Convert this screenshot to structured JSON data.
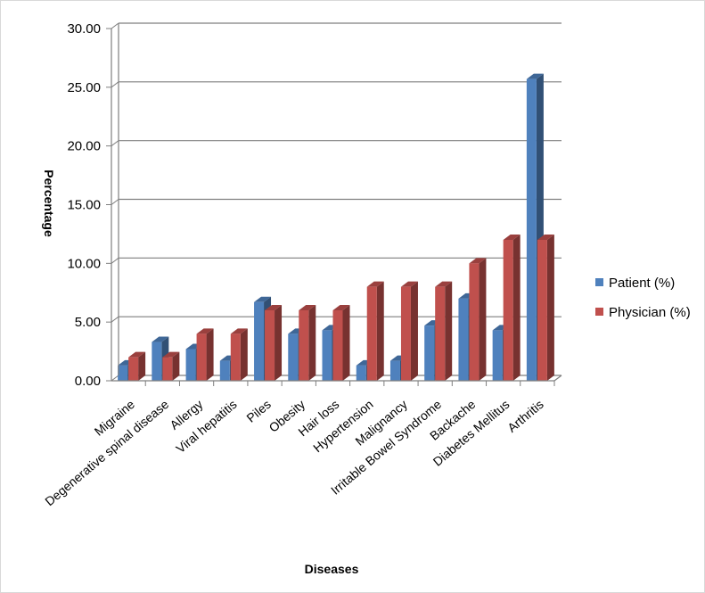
{
  "chart_data": {
    "type": "bar",
    "title": "",
    "xlabel": "Diseases",
    "ylabel": "Percentage",
    "ylim": [
      0,
      30
    ],
    "yticks": [
      "0.00",
      "5.00",
      "10.00",
      "15.00",
      "20.00",
      "25.00",
      "30.00"
    ],
    "grid": true,
    "legend_position": "right",
    "categories": [
      "Migraine",
      "Degenerative spinal disease",
      "Allergy",
      "Viral hepatitis",
      "Piles",
      "Obesity",
      "Hair loss",
      "Hypertension",
      "Malignancy",
      "Irritable Bowel Syndrome",
      "Backache",
      "Diabetes Mellitus",
      "Arthritis"
    ],
    "series": [
      {
        "name": "Patient  (%)",
        "color": "#4f81bd",
        "values": [
          1.3,
          3.3,
          2.7,
          1.7,
          6.7,
          4.0,
          4.3,
          1.3,
          1.7,
          4.7,
          7.0,
          4.3,
          25.7
        ]
      },
      {
        "name": "Physician (%)",
        "color": "#c0504d",
        "values": [
          2.0,
          2.0,
          4.0,
          4.0,
          6.0,
          6.0,
          6.0,
          8.0,
          8.0,
          8.0,
          10.0,
          12.0,
          12.0
        ]
      }
    ]
  }
}
